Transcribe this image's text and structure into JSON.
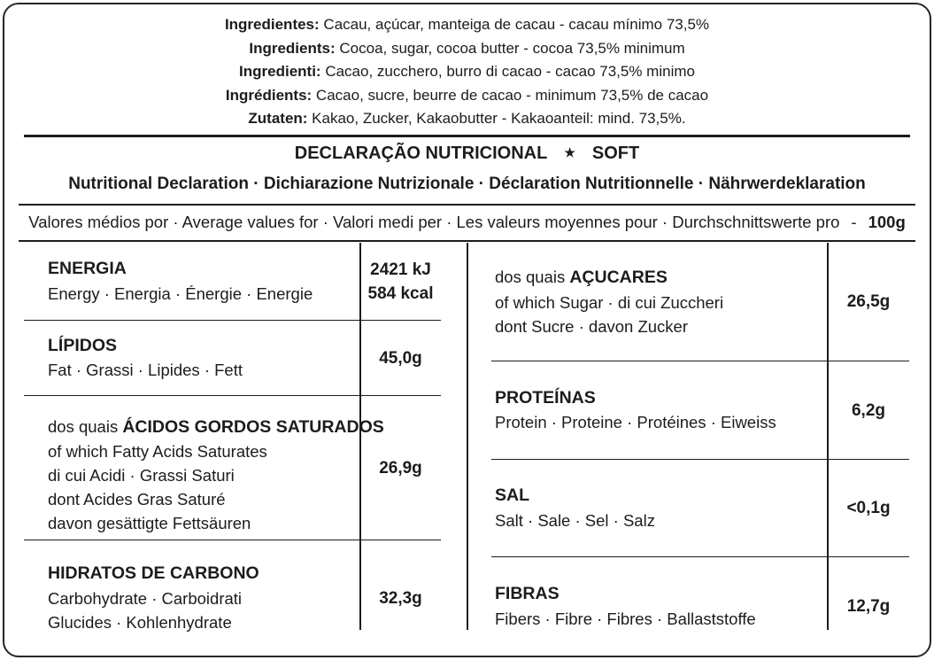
{
  "ingredients": {
    "lines": [
      {
        "label": "Ingredientes:",
        "text": " Cacau, açúcar, manteiga de cacau - cacau mínimo 73,5%"
      },
      {
        "label": "Ingredients:",
        "text": " Cocoa, sugar, cocoa butter - cocoa 73,5% minimum"
      },
      {
        "label": "Ingredienti:",
        "text": " Cacao, zucchero, burro di cacao - cacao 73,5% minimo"
      },
      {
        "label": "Ingrédients:",
        "text": " Cacao, sucre, beurre de cacao - minimum 73,5% de cacao"
      },
      {
        "label": "Zutaten:",
        "text": " Kakao, Zucker, Kakaobutter - Kakaoanteil: mind. 73,5%."
      }
    ]
  },
  "header": {
    "title_left": "DECLARAÇÃO NUTRICIONAL",
    "star_icon": "★",
    "title_right": "SOFT",
    "subtitle": "Nutritional Declaration · Dichiarazione Nutrizionale · Déclaration Nutritionnelle · Nährwerdeklaration"
  },
  "per_line": {
    "text": "Valores médios por · Average values for · Valori medi per · Les valeurs moyennes pour · Durchschnittswerte pro",
    "dash": "-",
    "amount": "100g"
  },
  "table": {
    "left_rows": [
      {
        "name": "ENERGIA",
        "sub": [
          "Energy · Energia · Énergie · Energie"
        ],
        "value_lines": [
          "2421 kJ",
          "584 kcal"
        ]
      },
      {
        "name": "LÍPIDOS",
        "sub": [
          "Fat · Grassi · Lipides · Fett"
        ],
        "value_lines": [
          "45,0g"
        ]
      },
      {
        "prefix": "dos quais ",
        "name": "ÁCIDOS GORDOS SATURADOS",
        "sub": [
          "of which Fatty Acids Saturates",
          "di cui Acidi · Grassi Saturi",
          "dont Acides Gras Saturé",
          "davon gesättigte Fettsäuren"
        ],
        "value_lines": [
          "26,9g"
        ]
      },
      {
        "name": "HIDRATOS DE CARBONO",
        "sub": [
          "Carbohydrate · Carboidrati",
          "Glucides · Kohlenhydrate"
        ],
        "value_lines": [
          "32,3g"
        ]
      }
    ],
    "right_rows": [
      {
        "prefix": "dos quais ",
        "name": "AÇUCARES",
        "sub": [
          "of which Sugar · di cui Zuccheri",
          "dont Sucre · davon Zucker"
        ],
        "value_lines": [
          "26,5g"
        ]
      },
      {
        "name": "PROTEÍNAS",
        "sub": [
          "Protein · Proteine · Protéines · Eiweiss"
        ],
        "value_lines": [
          "6,2g"
        ]
      },
      {
        "name": "SAL",
        "sub": [
          "Salt · Sale · Sel · Salz"
        ],
        "value_lines": [
          "<0,1g"
        ]
      },
      {
        "name": "FIBRAS",
        "sub": [
          "Fibers · Fibre · Fibres · Ballaststoffe"
        ],
        "value_lines": [
          "12,7g"
        ]
      }
    ]
  },
  "colors": {
    "text": "#1c1c1c",
    "line": "#1c1c1c",
    "background": "#ffffff"
  }
}
